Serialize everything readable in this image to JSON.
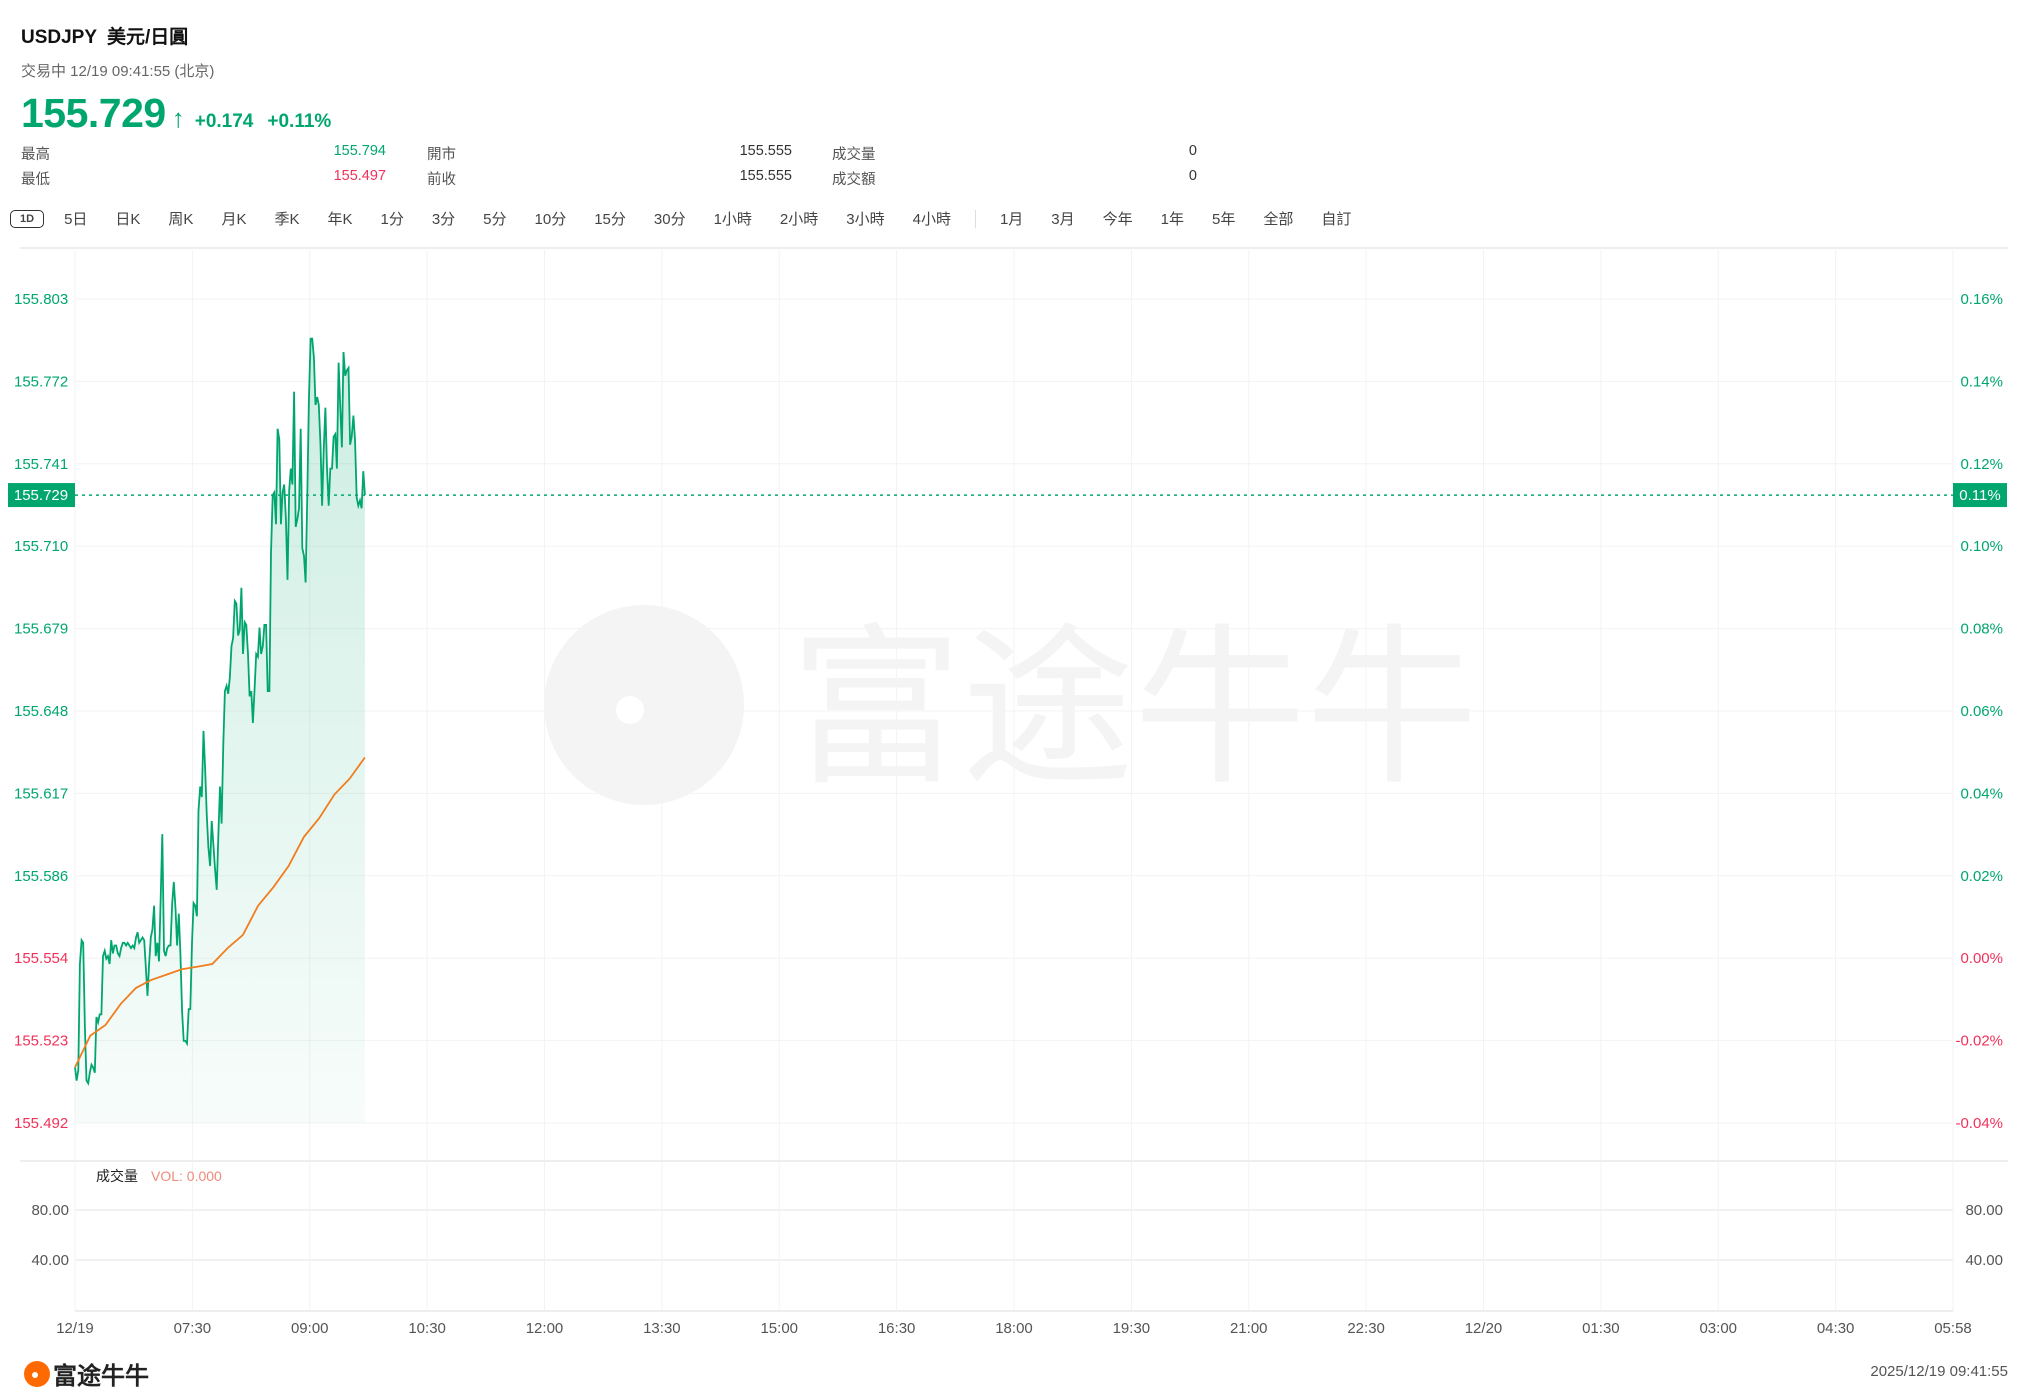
{
  "header": {
    "symbol": "USDJPY",
    "name": "美元/日圓",
    "status": "交易中 12/19 09:41:55 (北京)",
    "price": "155.729",
    "change": "+0.174",
    "change_pct": "+0.11%",
    "direction_icon": "arrow-up-icon"
  },
  "stats": [
    {
      "label": "最高",
      "value": "155.794",
      "color": "#00a66e"
    },
    {
      "label": "最低",
      "value": "155.497",
      "color": "#f0325a"
    },
    {
      "label": "開市",
      "value": "155.555",
      "color": "#333333"
    },
    {
      "label": "前收",
      "value": "155.555",
      "color": "#333333"
    },
    {
      "label": "成交量",
      "value": "0",
      "color": "#333333"
    },
    {
      "label": "成交額",
      "value": "0",
      "color": "#333333"
    }
  ],
  "toolbar": {
    "active": "1D",
    "periods": [
      "5日",
      "日K",
      "周K",
      "月K",
      "季K",
      "年K",
      "1分",
      "3分",
      "5分",
      "10分",
      "15分",
      "30分",
      "1小時",
      "2小時",
      "3小時",
      "4小時"
    ],
    "ranges": [
      "1月",
      "3月",
      "今年",
      "1年",
      "5年",
      "全部",
      "自訂"
    ]
  },
  "colors": {
    "up": "#00a66e",
    "down": "#f0325a",
    "ma": "#f07d1e",
    "vol_label": "#f08a7a"
  },
  "chart_data": {
    "type": "area",
    "prev_close": 155.555,
    "current_price": 155.729,
    "current_price_label": "155.729",
    "current_pct_label": "0.11%",
    "ylim": [
      155.492,
      155.803
    ],
    "y_ticks": [
      "155.803",
      "155.772",
      "155.741",
      "155.710",
      "155.679",
      "155.648",
      "155.617",
      "155.586",
      "155.554",
      "155.523",
      "155.492"
    ],
    "y_ticks_pct": [
      "0.16%",
      "0.14%",
      "0.12%",
      "0.10%",
      "0.08%",
      "0.06%",
      "0.04%",
      "0.02%",
      "0.00%",
      "-0.02%",
      "-0.04%"
    ],
    "x_ticks": [
      "12/19",
      "07:30",
      "09:00",
      "10:30",
      "12:00",
      "13:30",
      "15:00",
      "16:30",
      "18:00",
      "19:30",
      "21:00",
      "22:30",
      "12/20",
      "01:30",
      "03:00",
      "04:30",
      "05:58"
    ],
    "x_range": [
      "06:00",
      "05:58"
    ],
    "grid": true,
    "series": [
      {
        "role": "price",
        "time_range": [
          "06:00",
          "09:42"
        ],
        "values": [
          155.513,
          155.508,
          155.512,
          155.552,
          155.561,
          155.56,
          155.528,
          155.508,
          155.507,
          155.511,
          155.514,
          155.513,
          155.511,
          155.532,
          155.53,
          155.533,
          155.533,
          155.555,
          155.557,
          155.554,
          155.555,
          155.552,
          155.561,
          155.556,
          155.559,
          155.559,
          155.556,
          155.555,
          155.558,
          155.56,
          155.56,
          155.559,
          155.56,
          155.559,
          155.558,
          155.559,
          155.558,
          155.562,
          155.564,
          155.56,
          155.561,
          155.562,
          155.561,
          155.551,
          155.54,
          155.552,
          155.562,
          155.565,
          155.574,
          155.555,
          155.56,
          155.553,
          155.577,
          155.601,
          155.557,
          155.555,
          155.558,
          155.559,
          155.559,
          155.575,
          155.583,
          155.573,
          155.559,
          155.571,
          155.556,
          155.534,
          155.523,
          155.523,
          155.522,
          155.535,
          155.535,
          155.56,
          155.575,
          155.574,
          155.57,
          155.61,
          155.619,
          155.615,
          155.64,
          155.626,
          155.608,
          155.596,
          155.589,
          155.606,
          155.597,
          155.588,
          155.58,
          155.6,
          155.619,
          155.605,
          155.635,
          155.655,
          155.657,
          155.654,
          155.66,
          155.672,
          155.675,
          155.689,
          155.688,
          155.676,
          155.678,
          155.694,
          155.669,
          155.681,
          155.68,
          155.669,
          155.653,
          155.655,
          155.643,
          155.656,
          155.669,
          155.668,
          155.679,
          155.669,
          155.672,
          155.68,
          155.68,
          155.655,
          155.655,
          155.707,
          155.729,
          155.73,
          155.718,
          155.754,
          155.75,
          155.718,
          155.73,
          155.733,
          155.72,
          155.697,
          155.731,
          155.739,
          155.733,
          155.768,
          155.717,
          155.72,
          155.724,
          155.754,
          155.709,
          155.706,
          155.696,
          155.729,
          155.765,
          155.788,
          155.788,
          155.781,
          155.763,
          155.766,
          155.763,
          155.748,
          155.725,
          155.746,
          155.762,
          155.739,
          155.725,
          155.739,
          155.739,
          155.751,
          155.752,
          155.739,
          155.779,
          155.763,
          155.747,
          155.783,
          155.774,
          155.776,
          155.777,
          155.748,
          155.751,
          155.759,
          155.75,
          155.728,
          155.725,
          155.727,
          155.724,
          155.738,
          155.729
        ]
      },
      {
        "role": "average",
        "time_range": [
          "06:00",
          "09:42"
        ],
        "values": [
          155.513,
          155.525,
          155.529,
          155.537,
          155.543,
          155.546,
          155.548,
          155.55,
          155.551,
          155.552,
          155.558,
          155.563,
          155.574,
          155.581,
          155.589,
          155.6,
          155.607,
          155.616,
          155.622,
          155.63
        ]
      }
    ],
    "volume": {
      "label": "成交量",
      "value_label": "VOL: 0.000",
      "y_ticks": [
        "80.00",
        "40.00"
      ],
      "ylim": [
        0,
        120
      ]
    }
  },
  "watermark": "富途牛牛",
  "footer": {
    "brand": "富途牛牛",
    "timestamp": "2025/12/19 09:41:55"
  }
}
